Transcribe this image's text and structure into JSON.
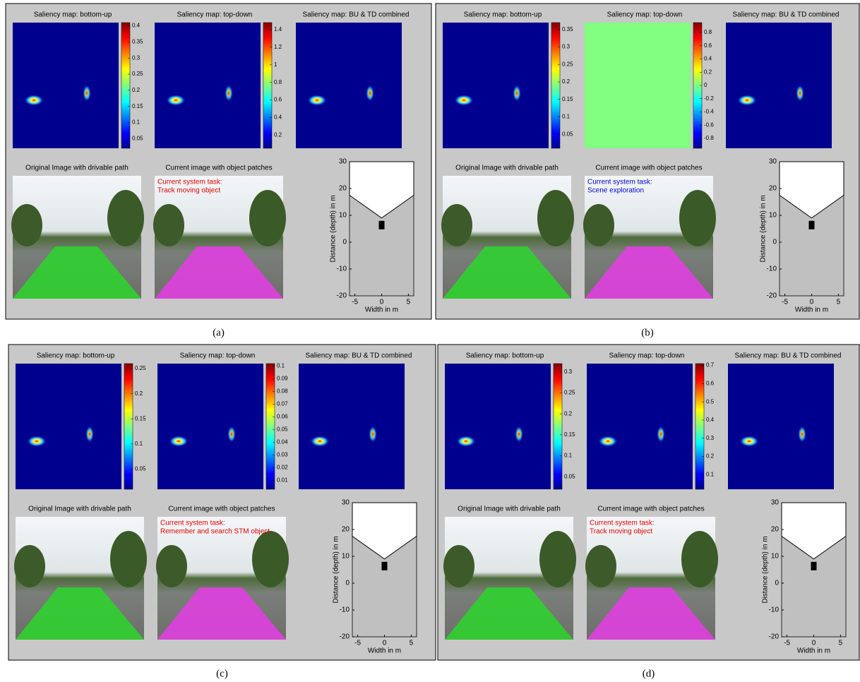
{
  "panels": [
    {
      "caption": "(a)",
      "maps": [
        {
          "title": "Saliency map: bottom-up",
          "background": "#00008f",
          "clim": [
            0.02,
            0.41
          ],
          "cticks": [
            0.05,
            0.1,
            0.15,
            0.2,
            0.25,
            0.3,
            0.35,
            0.4
          ]
        },
        {
          "title": "Saliency map: top-down",
          "background": "#00008f",
          "clim": [
            0.05,
            1.48
          ],
          "cticks": [
            0.2,
            0.4,
            0.6,
            0.8,
            1,
            1.2,
            1.4
          ]
        },
        {
          "title": "Saliency map: BU & TD combined",
          "background": "#00008f"
        }
      ],
      "images": [
        {
          "title": "Original Image with drivable path"
        },
        {
          "title": "Current image with object patches",
          "task_label": "Current system task:",
          "task": "Track moving object",
          "task_color": "#e00000"
        }
      ],
      "plot": {
        "xlabel": "Width in m",
        "ylabel": "Distance (depth) in m",
        "xlim": [
          -6,
          6
        ],
        "ylim": [
          -20,
          30
        ],
        "xticks": [
          -5,
          0,
          5
        ],
        "yticks": [
          -20,
          -10,
          0,
          10,
          20,
          30
        ]
      }
    },
    {
      "caption": "(b)",
      "maps": [
        {
          "title": "Saliency map: bottom-up",
          "background": "#00008f",
          "clim": [
            0.01,
            0.37
          ],
          "cticks": [
            0.05,
            0.1,
            0.15,
            0.2,
            0.25,
            0.3,
            0.35
          ]
        },
        {
          "title": "Saliency map: top-down",
          "background": "#80ff80",
          "clim": [
            -0.95,
            0.95
          ],
          "cticks": [
            -0.8,
            -0.6,
            -0.4,
            -0.2,
            0,
            0.2,
            0.4,
            0.6,
            0.8
          ]
        },
        {
          "title": "Saliency map: BU & TD combined",
          "background": "#00008f"
        }
      ],
      "images": [
        {
          "title": "Original Image with drivable path"
        },
        {
          "title": "Current image with object patches",
          "task_label": "Current system task:",
          "task": "Scene exploration",
          "task_color": "#0000d0"
        }
      ],
      "plot": {
        "xlabel": "Width in m",
        "ylabel": "Distance (depth) in m",
        "xlim": [
          -6,
          6
        ],
        "ylim": [
          -20,
          30
        ],
        "xticks": [
          -5,
          0,
          5
        ],
        "yticks": [
          -20,
          -10,
          0,
          10,
          20,
          30
        ]
      }
    },
    {
      "caption": "(c)",
      "maps": [
        {
          "title": "Saliency map: bottom-up",
          "background": "#00008f",
          "clim": [
            0.01,
            0.26
          ],
          "cticks": [
            0.05,
            0.1,
            0.15,
            0.2,
            0.25
          ]
        },
        {
          "title": "Saliency map: top-down",
          "background": "#00008f",
          "clim": [
            0.003,
            0.102
          ],
          "cticks": [
            0.01,
            0.02,
            0.03,
            0.04,
            0.05,
            0.06,
            0.07,
            0.08,
            0.09,
            0.1
          ]
        },
        {
          "title": "Saliency map: BU & TD combined",
          "background": "#00008f"
        }
      ],
      "images": [
        {
          "title": "Original Image with drivable path"
        },
        {
          "title": "Current image with object patches",
          "task_label": "Current system task:",
          "task": "Remember and search STM object",
          "task_color": "#e00000"
        }
      ],
      "plot": {
        "xlabel": "Width in m",
        "ylabel": "Distance (depth) in m",
        "xlim": [
          -6,
          6
        ],
        "ylim": [
          -20,
          30
        ],
        "xticks": [
          -5,
          0,
          5
        ],
        "yticks": [
          -20,
          -10,
          0,
          10,
          20,
          30
        ]
      }
    },
    {
      "caption": "(d)",
      "maps": [
        {
          "title": "Saliency map: bottom-up",
          "background": "#00008f",
          "clim": [
            0.02,
            0.32
          ],
          "cticks": [
            0.05,
            0.1,
            0.15,
            0.2,
            0.25,
            0.3
          ]
        },
        {
          "title": "Saliency map: top-down",
          "background": "#00008f",
          "clim": [
            0.02,
            0.71
          ],
          "cticks": [
            0.1,
            0.2,
            0.3,
            0.4,
            0.5,
            0.6,
            0.7
          ]
        },
        {
          "title": "Saliency map: BU & TD combined",
          "background": "#00008f"
        }
      ],
      "images": [
        {
          "title": "Original Image with drivable path"
        },
        {
          "title": "Current image with object patches",
          "task_label": "Current system task:",
          "task": "Track moving object",
          "task_color": "#e00000"
        }
      ],
      "plot": {
        "xlabel": "Width in m",
        "ylabel": "Distance (depth) in m",
        "xlim": [
          -6,
          6
        ],
        "ylim": [
          -20,
          30
        ],
        "xticks": [
          -5,
          0,
          5
        ],
        "yticks": [
          -20,
          -10,
          0,
          10,
          20,
          30
        ]
      }
    }
  ]
}
